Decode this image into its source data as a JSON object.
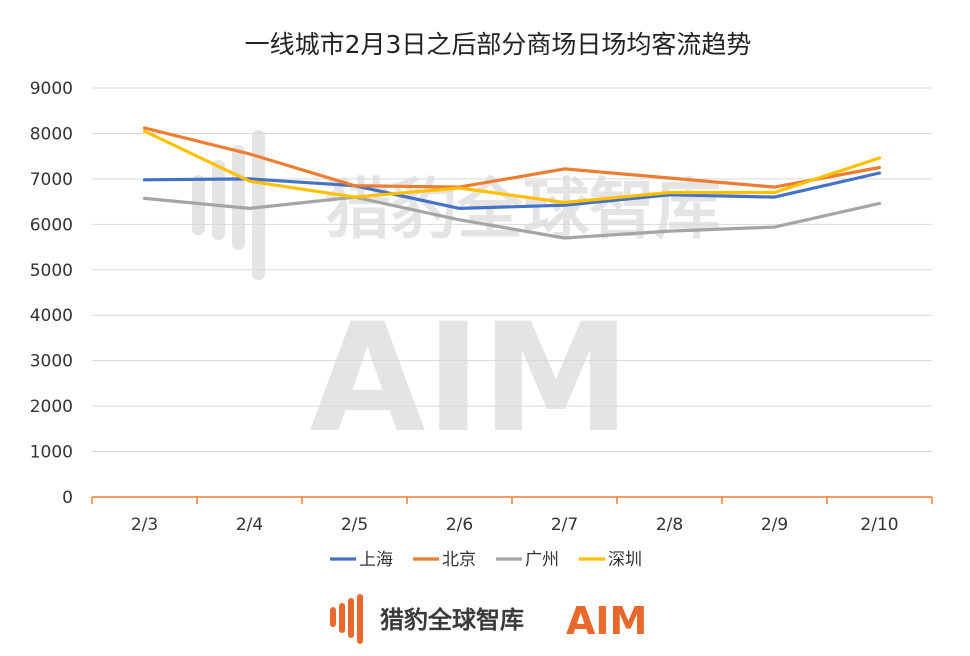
{
  "chart_data": {
    "type": "line",
    "title": "一线城市2月3日之后部分商场日场均客流趋势",
    "categories": [
      "2/3",
      "2/4",
      "2/5",
      "2/6",
      "2/7",
      "2/8",
      "2/9",
      "2/10"
    ],
    "ylim": [
      0,
      9000
    ],
    "yticks": [
      "0",
      "1000",
      "2000",
      "3000",
      "4000",
      "5000",
      "6000",
      "7000",
      "8000",
      "9000"
    ],
    "grid": true,
    "legend_position": "bottom",
    "series": [
      {
        "name": "上海",
        "color": "#4472C4",
        "values": [
          6980,
          7000,
          6850,
          6350,
          6420,
          6650,
          6600,
          7130
        ]
      },
      {
        "name": "北京",
        "color": "#ED7D31",
        "values": [
          8120,
          7550,
          6850,
          6820,
          7220,
          7020,
          6820,
          7250
        ]
      },
      {
        "name": "广州",
        "color": "#A5A5A5",
        "values": [
          6570,
          6350,
          6600,
          6100,
          5700,
          5850,
          5940,
          6460
        ]
      },
      {
        "name": "深圳",
        "color": "#FFC000",
        "values": [
          8050,
          6950,
          6600,
          6800,
          6480,
          6700,
          6700,
          7460
        ]
      }
    ]
  },
  "watermark": {
    "brand_text": "猎豹全球智库",
    "aim_text": "AIM"
  },
  "footer": {
    "brand_text": "猎豹全球智库",
    "aim_text": "AIM",
    "brand_color": "#E8692B"
  }
}
